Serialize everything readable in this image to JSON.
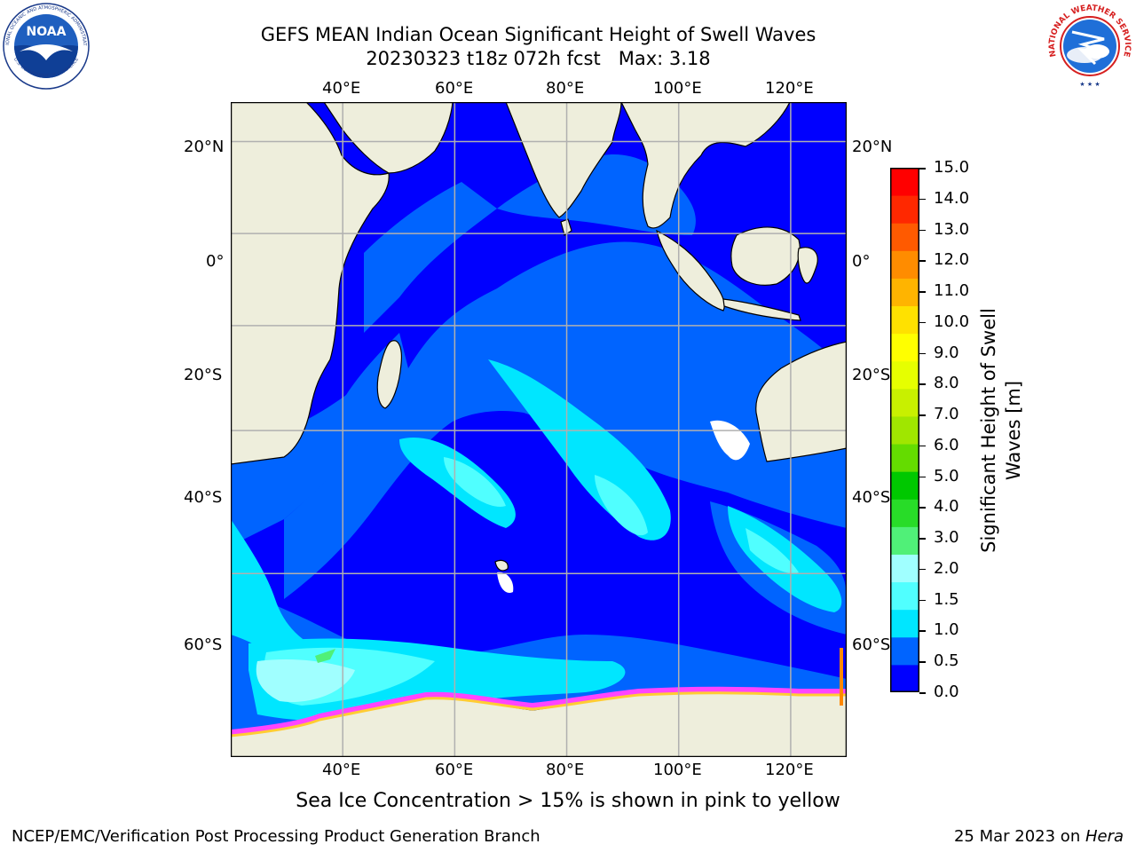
{
  "title": {
    "line1": "GEFS MEAN Indian Ocean Significant Height of Swell Waves",
    "line2": "20230323 t18z 072h fcst   Max: 3.18"
  },
  "logos": {
    "noaa": {
      "text": "NOAA",
      "ring_top": "NATIONAL OCEANIC AND ATMOSPHERIC ADMINISTRATION",
      "ring_bottom": "U.S. DEPARTMENT OF COMMERCE"
    },
    "nws": {
      "ring_text": "NATIONAL WEATHER SERVICE"
    }
  },
  "map": {
    "projection": "equirectangular",
    "lon_range": [
      20,
      130
    ],
    "lat_range": [
      -75,
      28
    ],
    "grid": true,
    "lon_labels": [
      "40°E",
      "60°E",
      "80°E",
      "100°E",
      "120°E"
    ],
    "lat_labels": [
      "20°N",
      "0°",
      "20°S",
      "40°S",
      "60°S"
    ],
    "ocean_field": "significant swell height",
    "land_color": "#eeeedc",
    "max_value": 3.18
  },
  "colorbar": {
    "title": "Significant Height of Swell Waves [m]",
    "ticks": [
      "15.0",
      "14.0",
      "13.0",
      "12.0",
      "11.0",
      "10.0",
      "9.0",
      "8.0",
      "7.0",
      "6.0",
      "5.0",
      "4.0",
      "3.0",
      "2.0",
      "1.5",
      "1.0",
      "0.5",
      "0.0"
    ],
    "colors": [
      "#0000ff",
      "#0064ff",
      "#00e6ff",
      "#50ffff",
      "#a0ffff",
      "#50f078",
      "#28dc28",
      "#00c800",
      "#64dc00",
      "#a0e600",
      "#c8f000",
      "#e6ff00",
      "#ffff00",
      "#ffe100",
      "#ffb400",
      "#ff8c00",
      "#ff5a00",
      "#ff2800",
      "#ff0000"
    ]
  },
  "ice_note": "Sea Ice Concentration > 15% is shown in pink to yellow",
  "footer": {
    "left": "NCEP/EMC/Verification Post Processing Product Generation Branch",
    "right_date": "25 Mar 2023 on ",
    "right_host": "Hera"
  }
}
